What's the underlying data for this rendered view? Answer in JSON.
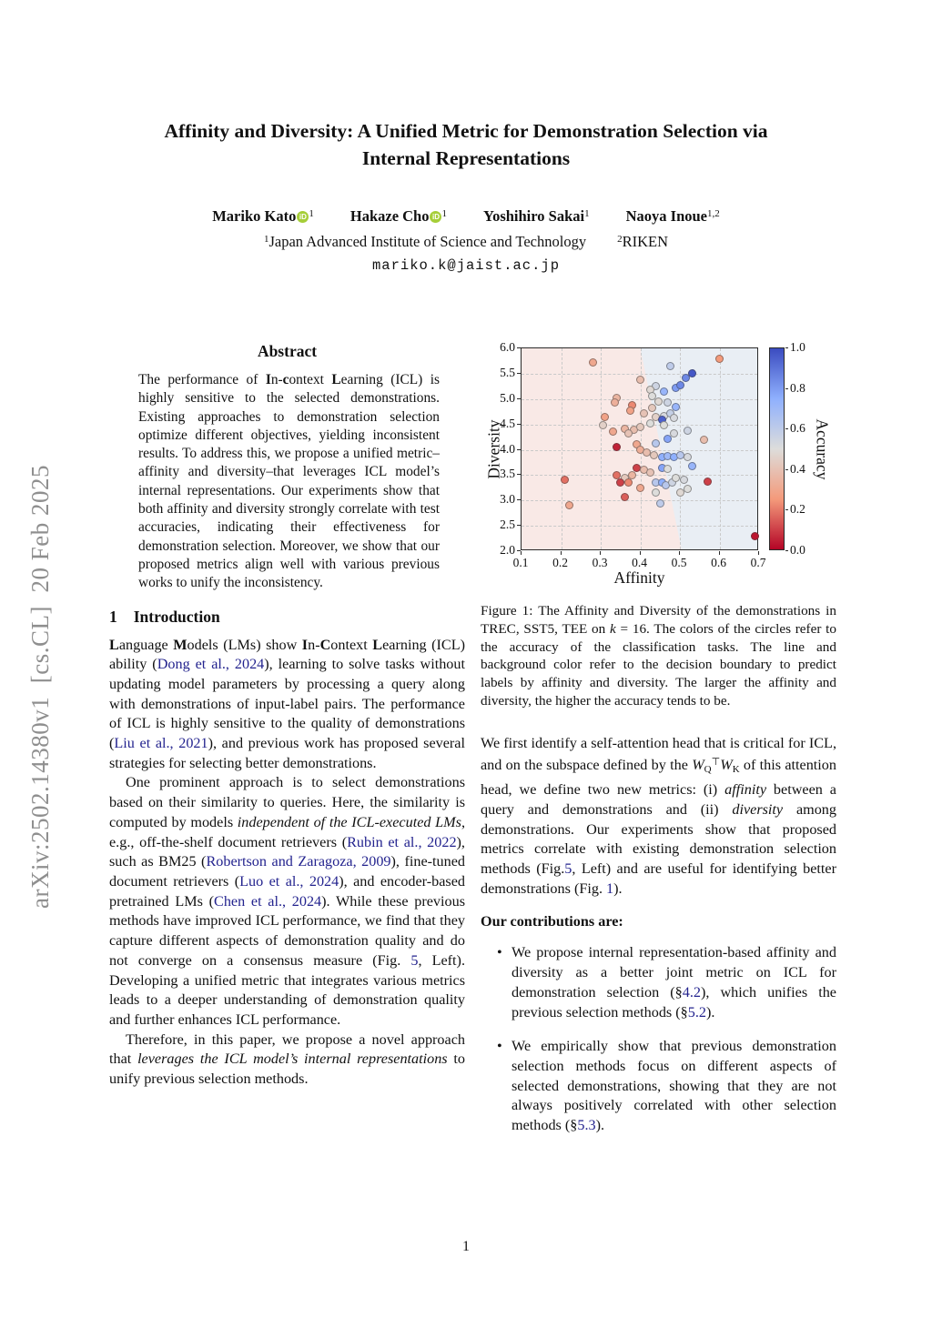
{
  "sidebar": {
    "arxiv_label": "arXiv:2502.14380v1  [cs.CL]  20 Feb 2025"
  },
  "header": {
    "title_line1": "Affinity and Diversity: A Unified Metric for Demonstration Selection via",
    "title_line2": "Internal Representations",
    "authors": [
      {
        "name": "Mariko Kato",
        "sup": "1"
      },
      {
        "name": "Hakaze Cho",
        "sup": "1"
      },
      {
        "name": "Yoshihiro Sakai",
        "sup": "1"
      },
      {
        "name": "Naoya Inoue",
        "sup": "1,2"
      }
    ],
    "orcid_icon_text": "iD",
    "affiliations": [
      {
        "sup": "1",
        "name": "Japan Advanced Institute of Science and Technology"
      },
      {
        "sup": "2",
        "name": "RIKEN"
      }
    ],
    "email": "mariko.k@jaist.ac.jp"
  },
  "abstract": {
    "heading": "Abstract",
    "body_html": "The performance of <b>I</b>n-<b>c</b>ontext <b>L</b>earning (ICL) is highly sensitive to the selected demonstrations. Existing approaches to demonstration selection optimize different objectives, yielding inconsistent results. To address this, we propose a unified metric–affinity and diversity–that leverages ICL model’s internal representations. Our experiments show that both affinity and diversity strongly correlate with test accuracies, indicating their effectiveness for demonstration selection. Moreover, we show that our proposed metrics align well with various previous works to unify the inconsistency."
  },
  "introduction": {
    "number": "1",
    "heading": "Introduction",
    "para1_html": "<b>L</b>anguage <b>M</b>odels (LMs) show <b>I</b>n-<b>C</b>ontext <b>L</b>earning (ICL) ability (<c>Dong et al., 2024</c>), learning to solve tasks without updating model parameters by processing a query along with demonstrations of input-label pairs. The performance of ICL is highly sensitive to the quality of demonstrations (<c>Liu et al., 2021</c>), and previous work has proposed several strategies for selecting better demonstrations.",
    "para2_html": "One prominent approach is to select demonstrations based on their similarity to queries. Here, the similarity is computed by models <i>independent of the ICL-executed LMs</i>, e.g., off-the-shelf document retrievers (<c>Rubin et al., 2022</c>), such as BM25 (<c>Robertson and Zaragoza, 2009</c>), fine-tuned document retrievers (<c>Luo et al., 2024</c>), and encoder-based pretrained LMs (<c>Chen et al., 2024</c>). While these previous methods have improved ICL performance, we find that they capture different aspects of demonstration quality and do not converge on a consensus measure (Fig. <c>5</c>, Left). Developing a unified metric that integrates various metrics leads to a deeper understanding of demonstration quality and further enhances ICL performance.",
    "para3_html": "Therefore, in this paper, we propose a novel approach that <i>leverages the ICL model’s internal representations</i> to unify previous selection methods."
  },
  "figure": {
    "caption_html": "Figure 1: The Affinity and Diversity of the demonstrations in TREC, SST5, TEE on <i>k</i> = 16. The colors of the circles refer to the accuracy of the classification tasks. The line and background color refer to the decision boundary to predict labels by affinity and diversity. The larger the affinity and diversity, the higher the accuracy tends to be."
  },
  "right_column": {
    "para1_html": "We first identify a self-attention head that is critical for ICL, and on the subspace defined by the <i>W</i><sub>Q</sub><sup>⊤</sup><i>W</i><sub>K</sub> of this attention head, we define two new metrics: (i) <i>affinity</i> between a query and demonstrations and (ii) <i>diversity</i> among demonstrations. Our experiments show that proposed metrics correlate with existing demonstration selection methods (Fig.<c>5</c>, Left) and are useful for identifying better demonstrations (Fig. <c>1</c>).",
    "contributions_heading": "Our contributions are:",
    "bullet1_html": "We propose internal representation-based affinity and diversity as a better joint metric on ICL for demonstration selection (§<c>4.2</c>), which unifies the previous selection methods (§<c>5.2</c>).",
    "bullet2_html": "We empirically show that previous demonstration selection methods focus on different aspects of selected demonstrations, showing that they are not always positively correlated with other selection methods (§<c>5.3</c>)."
  },
  "page": {
    "number": "1"
  },
  "chart_data": {
    "type": "scatter",
    "xlabel": "Affinity",
    "ylabel": "Diversity",
    "xlim": [
      0.1,
      0.7
    ],
    "ylim": [
      2.0,
      6.0
    ],
    "xticks": [
      0.1,
      0.2,
      0.3,
      0.4,
      0.5,
      0.6,
      0.7
    ],
    "yticks": [
      2.0,
      2.5,
      3.0,
      3.5,
      4.0,
      4.5,
      5.0,
      5.5,
      6.0
    ],
    "grid": true,
    "colorbar": {
      "label": "Accuracy",
      "ticks": [
        0.0,
        0.2,
        0.4,
        0.6,
        0.8,
        1.0
      ],
      "cmap": "coolwarm_reversed"
    },
    "decision_boundary": {
      "x_at_top": 0.4,
      "x_at_bottom": 0.505,
      "left_bg": "#f9e9e6",
      "right_bg": "#e9eef4"
    },
    "points_format": [
      "affinity",
      "diversity",
      "accuracy"
    ],
    "points": [
      [
        0.28,
        5.72,
        0.3
      ],
      [
        0.6,
        5.8,
        0.25
      ],
      [
        0.53,
        5.5,
        0.97
      ],
      [
        0.515,
        5.42,
        0.85
      ],
      [
        0.475,
        5.65,
        0.6
      ],
      [
        0.44,
        5.25,
        0.55
      ],
      [
        0.46,
        5.15,
        0.72
      ],
      [
        0.49,
        5.22,
        0.8
      ],
      [
        0.5,
        5.28,
        0.85
      ],
      [
        0.4,
        5.38,
        0.38
      ],
      [
        0.425,
        5.18,
        0.48
      ],
      [
        0.34,
        5.02,
        0.35
      ],
      [
        0.335,
        4.93,
        0.33
      ],
      [
        0.38,
        4.87,
        0.22
      ],
      [
        0.375,
        4.78,
        0.28
      ],
      [
        0.43,
        5.05,
        0.5
      ],
      [
        0.445,
        4.95,
        0.48
      ],
      [
        0.47,
        4.93,
        0.55
      ],
      [
        0.49,
        4.85,
        0.72
      ],
      [
        0.43,
        4.82,
        0.42
      ],
      [
        0.41,
        4.72,
        0.4
      ],
      [
        0.44,
        4.65,
        0.45
      ],
      [
        0.46,
        4.66,
        0.52
      ],
      [
        0.475,
        4.72,
        0.58
      ],
      [
        0.485,
        4.63,
        0.52
      ],
      [
        0.455,
        4.6,
        0.95
      ],
      [
        0.31,
        4.65,
        0.28
      ],
      [
        0.305,
        4.48,
        0.45
      ],
      [
        0.33,
        4.35,
        0.3
      ],
      [
        0.36,
        4.42,
        0.35
      ],
      [
        0.385,
        4.4,
        0.38
      ],
      [
        0.37,
        4.33,
        0.4
      ],
      [
        0.4,
        4.45,
        0.42
      ],
      [
        0.425,
        4.52,
        0.5
      ],
      [
        0.46,
        4.48,
        0.5
      ],
      [
        0.52,
        4.38,
        0.55
      ],
      [
        0.485,
        4.33,
        0.52
      ],
      [
        0.47,
        4.22,
        0.78
      ],
      [
        0.44,
        4.12,
        0.62
      ],
      [
        0.56,
        4.2,
        0.38
      ],
      [
        0.34,
        4.05,
        0.05
      ],
      [
        0.39,
        4.1,
        0.3
      ],
      [
        0.4,
        4.0,
        0.32
      ],
      [
        0.415,
        3.95,
        0.38
      ],
      [
        0.435,
        3.9,
        0.42
      ],
      [
        0.455,
        3.85,
        0.75
      ],
      [
        0.47,
        3.88,
        0.7
      ],
      [
        0.485,
        3.85,
        0.75
      ],
      [
        0.5,
        3.9,
        0.62
      ],
      [
        0.52,
        3.85,
        0.52
      ],
      [
        0.53,
        3.68,
        0.72
      ],
      [
        0.455,
        3.65,
        0.78
      ],
      [
        0.47,
        3.62,
        0.5
      ],
      [
        0.39,
        3.65,
        0.1
      ],
      [
        0.41,
        3.6,
        0.38
      ],
      [
        0.425,
        3.55,
        0.4
      ],
      [
        0.34,
        3.5,
        0.18
      ],
      [
        0.36,
        3.45,
        0.42
      ],
      [
        0.38,
        3.5,
        0.35
      ],
      [
        0.35,
        3.35,
        0.1
      ],
      [
        0.37,
        3.35,
        0.22
      ],
      [
        0.4,
        3.25,
        0.3
      ],
      [
        0.44,
        3.35,
        0.62
      ],
      [
        0.455,
        3.35,
        0.75
      ],
      [
        0.465,
        3.3,
        0.62
      ],
      [
        0.48,
        3.35,
        0.55
      ],
      [
        0.49,
        3.45,
        0.5
      ],
      [
        0.51,
        3.4,
        0.52
      ],
      [
        0.52,
        3.22,
        0.5
      ],
      [
        0.5,
        3.15,
        0.48
      ],
      [
        0.44,
        3.15,
        0.5
      ],
      [
        0.57,
        3.38,
        0.1
      ],
      [
        0.36,
        3.07,
        0.15
      ],
      [
        0.22,
        2.9,
        0.3
      ],
      [
        0.21,
        3.4,
        0.18
      ],
      [
        0.45,
        2.95,
        0.6
      ],
      [
        0.69,
        2.3,
        0.03
      ]
    ]
  }
}
